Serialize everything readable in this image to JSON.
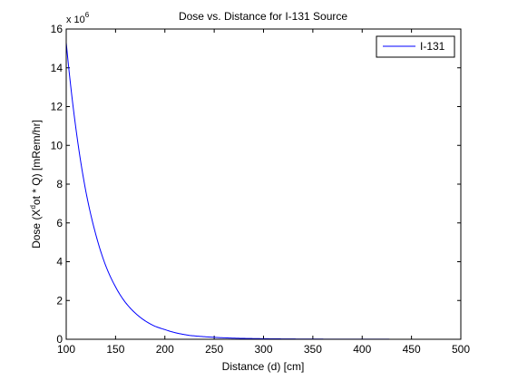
{
  "chart_data": {
    "type": "line",
    "title": "Dose vs. Distance for I-131 Source",
    "xlabel": "Distance (d) [cm]",
    "ylabel": {
      "prefix": "Dose (X",
      "sup": "d",
      "suffix": "ot * Q) [mRem/hr]"
    },
    "y_multiplier": {
      "base": "x 10",
      "exponent": "6"
    },
    "xlim": [
      100,
      500
    ],
    "ylim": [
      0,
      16
    ],
    "x_ticks": [
      100,
      150,
      200,
      250,
      300,
      350,
      400,
      450,
      500
    ],
    "y_ticks": [
      0,
      2,
      4,
      6,
      8,
      10,
      12,
      14,
      16
    ],
    "grid": false,
    "legend_position": "top-right",
    "series": [
      {
        "name": "I-131",
        "color": "#0000ff",
        "x": [
          100,
          110,
          120,
          130,
          140,
          150,
          160,
          170,
          180,
          190,
          200,
          225,
          250,
          275,
          300,
          350,
          400,
          450,
          500
        ],
        "y": [
          15.3,
          10.8,
          7.6,
          5.4,
          3.8,
          2.7,
          1.9,
          1.35,
          0.95,
          0.67,
          0.5,
          0.2,
          0.1,
          0.05,
          0.03,
          0.01,
          0.005,
          0.002,
          0.001
        ]
      }
    ]
  }
}
